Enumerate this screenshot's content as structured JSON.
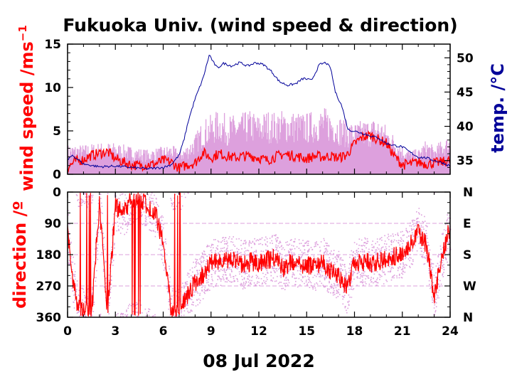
{
  "chart_data": [
    {
      "type": "line",
      "title": "Fukuoka Univ. (wind speed & direction)",
      "ylabel": "wind speed /ms",
      "ylabel_sup": "−1",
      "y2label": "temp. /",
      "y2label_unit": "°C",
      "xlim": [
        0,
        24
      ],
      "ylim": [
        0,
        15
      ],
      "y2lim": [
        33,
        52
      ],
      "x_ticks": [
        "0",
        "3",
        "6",
        "9",
        "12",
        "15",
        "18",
        "21",
        "24"
      ],
      "y_ticks": [
        "0",
        "5",
        "10",
        "15"
      ],
      "y2_ticks": [
        "35",
        "40",
        "45",
        "50"
      ],
      "colors": {
        "wind_mean": "#ff0000",
        "gust": "#dda0dd",
        "temperature": "#000099"
      },
      "series": [
        {
          "role": "temperature",
          "x": [
            0,
            0.3,
            1,
            2,
            3,
            4,
            5,
            6,
            6.5,
            7,
            7.3,
            7.6,
            8,
            8.5,
            8.9,
            9.1,
            9.4,
            9.8,
            10.3,
            10.8,
            11.3,
            11.8,
            12.3,
            12.8,
            13.3,
            13.8,
            14.3,
            14.8,
            15.3,
            15.8,
            16.2,
            16.5,
            16.8,
            17.2,
            17.6,
            18,
            18.5,
            19,
            19.5,
            20,
            20.5,
            21,
            21.5,
            22,
            22.5,
            23,
            23.5,
            24
          ],
          "values": [
            35,
            35.8,
            34.5,
            34.1,
            34.2,
            34,
            33.8,
            34,
            34.4,
            35.8,
            38,
            41,
            44,
            47,
            50.5,
            49.5,
            48.5,
            49.2,
            48.8,
            49.3,
            48.8,
            49.3,
            49,
            48,
            46.5,
            46,
            46.2,
            47,
            46.7,
            49,
            49.3,
            48.5,
            45,
            43,
            39.5,
            39.3,
            39,
            38.6,
            38.3,
            37.5,
            37.2,
            37,
            36.2,
            35.5,
            35.4,
            35,
            34.7,
            34.2
          ]
        },
        {
          "role": "gust",
          "x": [
            0,
            1,
            2,
            3,
            4,
            5,
            6,
            6.5,
            7,
            7.5,
            8,
            8.5,
            9,
            9.5,
            10,
            10.5,
            11,
            11.5,
            12,
            12.5,
            13,
            13.5,
            14,
            14.5,
            15,
            15.5,
            16,
            16.5,
            17,
            17.5,
            18,
            18.5,
            19,
            19.5,
            20,
            20.5,
            21,
            21.5,
            22,
            22.5,
            23,
            23.5,
            24
          ],
          "values": [
            3,
            3,
            3.2,
            3.2,
            2.8,
            2.5,
            2.8,
            3,
            2.5,
            3,
            4,
            5.5,
            6,
            6.5,
            6,
            6,
            6.2,
            6.5,
            6,
            6.5,
            6.3,
            6.5,
            6.4,
            6.3,
            6.2,
            6.5,
            6.8,
            6.5,
            6,
            5.5,
            5.2,
            5.5,
            5.6,
            5.8,
            5,
            4,
            3,
            2.5,
            2.5,
            3.5,
            2.8,
            3.5,
            4
          ]
        },
        {
          "role": "wind_mean",
          "x": [
            0,
            0.5,
            1,
            1.5,
            2,
            2.5,
            3,
            3.5,
            4,
            4.5,
            5,
            5.5,
            6,
            6.5,
            7,
            7.5,
            8,
            8.5,
            9,
            9.5,
            10,
            10.5,
            11,
            11.5,
            12,
            12.5,
            13,
            13.5,
            14,
            14.5,
            15,
            15.5,
            16,
            16.5,
            17,
            17.5,
            18,
            18.5,
            19,
            19.5,
            20,
            20.5,
            21,
            21.5,
            22,
            22.5,
            23,
            23.5,
            24
          ],
          "values": [
            0.8,
            1.5,
            1.7,
            2.2,
            2.4,
            2.6,
            1.8,
            1.4,
            1.1,
            1,
            1.1,
            1.2,
            1.6,
            1.4,
            0.7,
            1.1,
            1.3,
            2.5,
            1.9,
            2.4,
            2.1,
            1.9,
            2.1,
            2.1,
            1.9,
            1.6,
            2,
            2.3,
            2.2,
            2,
            1.8,
            2.1,
            2,
            2.1,
            1.9,
            2.2,
            3.5,
            4.3,
            4.5,
            4,
            3.6,
            2.1,
            1.1,
            1.2,
            1.4,
            1.2,
            1.3,
            1.4,
            1.6
          ]
        }
      ]
    },
    {
      "type": "scatter",
      "ylabel": "direction /",
      "ylabel_unit": "º",
      "xlim": [
        0,
        24
      ],
      "ylim": [
        360,
        0
      ],
      "x_ticks": [
        "0",
        "3",
        "6",
        "9",
        "12",
        "15",
        "18",
        "21",
        "24"
      ],
      "y_ticks": [
        "0",
        "90",
        "180",
        "270",
        "360"
      ],
      "y2_ticks": [
        "N",
        "E",
        "S",
        "W",
        "N"
      ],
      "gridlines": [
        90,
        180,
        270
      ],
      "colors": {
        "direction": "#ff0000",
        "scatter": "#dda0dd"
      },
      "series": [
        {
          "role": "direction",
          "x": [
            0,
            0.3,
            0.6,
            1,
            1.5,
            2,
            2.5,
            3,
            3.5,
            4,
            4.5,
            5,
            5.5,
            6,
            6.5,
            7,
            7.5,
            8,
            8.5,
            9,
            9.5,
            10,
            10.5,
            11,
            11.5,
            12,
            12.5,
            13,
            13.5,
            14,
            14.5,
            15,
            15.5,
            16,
            16.5,
            17,
            17.5,
            18,
            18.5,
            19,
            19.5,
            20,
            20.5,
            21,
            21.5,
            22,
            22.5,
            23,
            23.5,
            24
          ],
          "values": [
            120,
            240,
            330,
            340,
            350,
            30,
            350,
            40,
            60,
            20,
            15,
            40,
            60,
            150,
            340,
            350,
            300,
            260,
            240,
            205,
            200,
            200,
            195,
            210,
            200,
            205,
            195,
            190,
            220,
            200,
            205,
            210,
            215,
            200,
            230,
            240,
            280,
            200,
            200,
            205,
            200,
            190,
            185,
            180,
            145,
            115,
            150,
            300,
            180,
            100
          ]
        }
      ]
    }
  ],
  "x_date": "08 Jul 2022"
}
